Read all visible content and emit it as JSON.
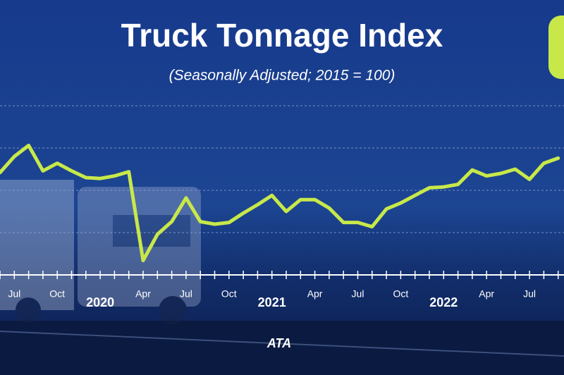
{
  "chart_data": {
    "type": "line",
    "title": "Truck Tonnage Index",
    "subtitle": "(Seasonally Adjusted; 2015 = 100)",
    "logo": "ATA",
    "categories": [
      null,
      "Jul",
      null,
      null,
      "Oct",
      null,
      null,
      null,
      null,
      null,
      "Apr",
      null,
      null,
      "Jul",
      null,
      null,
      "Oct",
      null,
      null,
      null,
      null,
      null,
      "Apr",
      null,
      null,
      "Jul",
      null,
      null,
      "Oct",
      null,
      null,
      null,
      null,
      null,
      "Apr",
      null,
      null,
      "Jul",
      null,
      null
    ],
    "years": [
      null,
      null,
      null,
      null,
      null,
      null,
      null,
      "2020",
      null,
      null,
      null,
      null,
      null,
      null,
      null,
      null,
      null,
      null,
      null,
      "2021",
      null,
      null,
      null,
      null,
      null,
      null,
      null,
      null,
      null,
      null,
      null,
      "2022",
      null,
      null,
      null,
      null,
      null,
      null,
      null,
      null
    ],
    "series": [
      {
        "name": "Truck Tonnage Index",
        "color": "#c8e84a",
        "values": [
          117.1,
          119.0,
          120.3,
          117.3,
          118.2,
          117.3,
          116.5,
          116.4,
          116.7,
          117.2,
          106.7,
          109.8,
          111.3,
          114.1,
          111.3,
          111.0,
          111.2,
          112.3,
          113.3,
          114.4,
          112.5,
          113.9,
          113.9,
          112.9,
          111.2,
          111.2,
          110.7,
          112.8,
          113.5,
          114.4,
          115.3,
          115.4,
          115.7,
          117.4,
          116.7,
          117.0,
          117.5,
          116.3,
          118.2,
          118.8
        ]
      }
    ],
    "ylim": [
      105,
      125
    ],
    "yticks": [
      110,
      115,
      120,
      125
    ],
    "grid": true
  }
}
